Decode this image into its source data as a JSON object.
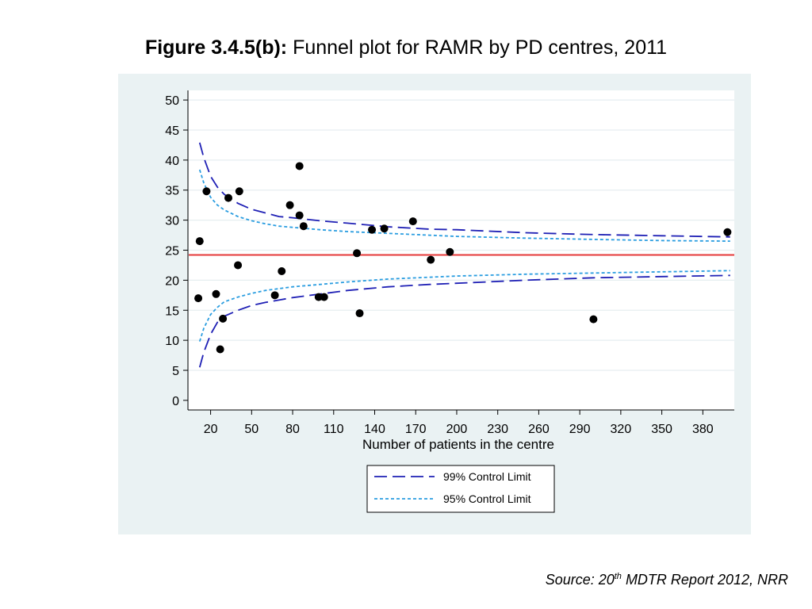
{
  "title": {
    "prefix": "Figure 3.4.5(b):",
    "text": " Funnel plot for RAMR by PD centres, 2011"
  },
  "source": {
    "pre": "Source: 20",
    "sup": "th",
    "post": " MDTR Report 2012, NRR"
  },
  "chart_data": {
    "type": "scatter",
    "title": "Funnel plot for RAMR by PD centres, 2011",
    "xlabel": "Number of patients in the centre",
    "ylabel": "",
    "xticks": [
      20,
      50,
      80,
      110,
      140,
      170,
      200,
      230,
      260,
      290,
      320,
      350,
      380
    ],
    "yticks": [
      0,
      5,
      10,
      15,
      20,
      25,
      30,
      35,
      40,
      45,
      50
    ],
    "xlim": [
      4,
      403
    ],
    "ylim": [
      -1.6,
      51.6
    ],
    "grid": true,
    "legend_position": "bottom-center",
    "reference_line": {
      "y": 24.2,
      "color": "#e53a3a"
    },
    "points": [
      {
        "x": 11,
        "y": 17.0
      },
      {
        "x": 12,
        "y": 26.5
      },
      {
        "x": 17,
        "y": 34.8
      },
      {
        "x": 24,
        "y": 17.7
      },
      {
        "x": 27,
        "y": 8.5
      },
      {
        "x": 29,
        "y": 13.6
      },
      {
        "x": 33,
        "y": 33.7
      },
      {
        "x": 40,
        "y": 22.5
      },
      {
        "x": 41,
        "y": 34.8
      },
      {
        "x": 67,
        "y": 17.5
      },
      {
        "x": 72,
        "y": 21.5
      },
      {
        "x": 78,
        "y": 32.5
      },
      {
        "x": 85,
        "y": 39.0
      },
      {
        "x": 85,
        "y": 30.8
      },
      {
        "x": 88,
        "y": 29.0
      },
      {
        "x": 99,
        "y": 17.2
      },
      {
        "x": 103,
        "y": 17.2
      },
      {
        "x": 127,
        "y": 24.5
      },
      {
        "x": 129,
        "y": 14.5
      },
      {
        "x": 138,
        "y": 28.4
      },
      {
        "x": 147,
        "y": 28.6
      },
      {
        "x": 168,
        "y": 29.8
      },
      {
        "x": 181,
        "y": 23.4
      },
      {
        "x": 195,
        "y": 24.7
      },
      {
        "x": 300,
        "y": 13.5
      },
      {
        "x": 398,
        "y": 28.0
      }
    ],
    "series": [
      {
        "name": "99% Control Limit",
        "color": "#1f20b5",
        "dash": "long",
        "upper": [
          [
            12,
            42.9
          ],
          [
            15,
            40.4
          ],
          [
            20,
            37.3
          ],
          [
            25,
            35.5
          ],
          [
            30,
            34.3
          ],
          [
            40,
            32.8
          ],
          [
            50,
            31.8
          ],
          [
            60,
            31.2
          ],
          [
            70,
            30.6
          ],
          [
            80,
            30.4
          ],
          [
            100,
            29.9
          ],
          [
            120,
            29.5
          ],
          [
            150,
            28.9
          ],
          [
            180,
            28.5
          ],
          [
            200,
            28.4
          ],
          [
            250,
            27.9
          ],
          [
            300,
            27.6
          ],
          [
            350,
            27.4
          ],
          [
            400,
            27.2
          ]
        ],
        "lower": [
          [
            12,
            5.5
          ],
          [
            15,
            8.0
          ],
          [
            20,
            11.0
          ],
          [
            25,
            13.0
          ],
          [
            30,
            14.0
          ],
          [
            40,
            15.0
          ],
          [
            50,
            15.8
          ],
          [
            60,
            16.3
          ],
          [
            70,
            16.7
          ],
          [
            80,
            17.1
          ],
          [
            100,
            17.7
          ],
          [
            120,
            18.3
          ],
          [
            150,
            18.9
          ],
          [
            180,
            19.3
          ],
          [
            200,
            19.5
          ],
          [
            250,
            20.0
          ],
          [
            300,
            20.4
          ],
          [
            350,
            20.6
          ],
          [
            400,
            20.8
          ]
        ]
      },
      {
        "name": "95% Control Limit",
        "color": "#2a9de0",
        "dash": "short",
        "upper": [
          [
            12,
            38.4
          ],
          [
            15,
            36.2
          ],
          [
            20,
            33.8
          ],
          [
            25,
            32.5
          ],
          [
            30,
            31.7
          ],
          [
            40,
            30.6
          ],
          [
            50,
            29.9
          ],
          [
            60,
            29.4
          ],
          [
            70,
            29.0
          ],
          [
            80,
            28.8
          ],
          [
            100,
            28.4
          ],
          [
            120,
            28.1
          ],
          [
            150,
            27.8
          ],
          [
            180,
            27.5
          ],
          [
            200,
            27.3
          ],
          [
            250,
            27.0
          ],
          [
            300,
            26.8
          ],
          [
            350,
            26.6
          ],
          [
            400,
            26.5
          ]
        ],
        "lower": [
          [
            12,
            9.8
          ],
          [
            15,
            12.0
          ],
          [
            20,
            14.3
          ],
          [
            25,
            15.5
          ],
          [
            30,
            16.4
          ],
          [
            40,
            17.2
          ],
          [
            50,
            17.8
          ],
          [
            60,
            18.3
          ],
          [
            70,
            18.6
          ],
          [
            80,
            18.9
          ],
          [
            100,
            19.3
          ],
          [
            120,
            19.7
          ],
          [
            150,
            20.2
          ],
          [
            180,
            20.5
          ],
          [
            200,
            20.7
          ],
          [
            250,
            21.0
          ],
          [
            300,
            21.2
          ],
          [
            350,
            21.4
          ],
          [
            400,
            21.6
          ]
        ]
      }
    ]
  }
}
